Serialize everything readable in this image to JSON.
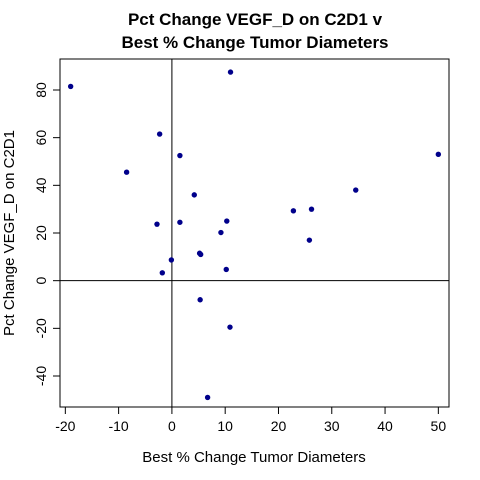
{
  "chart_data": {
    "type": "scatter",
    "title_lines": [
      "Pct Change VEGF_D on C2D1 v",
      "Best % Change Tumor Diameters"
    ],
    "xlabel": "Best % Change Tumor Diameters",
    "ylabel": "Pct Change VEGF_D on C2D1",
    "xlim": [
      -21,
      52
    ],
    "ylim": [
      -53,
      93
    ],
    "xticks": [
      -20,
      -10,
      0,
      10,
      20,
      30,
      40,
      50
    ],
    "yticks": [
      -40,
      -20,
      0,
      20,
      40,
      60,
      80
    ],
    "reference_lines": {
      "x": 0,
      "y": 0
    },
    "point_color": "#00008B",
    "points": [
      {
        "x": -19.0,
        "y": 81.5
      },
      {
        "x": -2.3,
        "y": 61.5
      },
      {
        "x": -8.5,
        "y": 45.5
      },
      {
        "x": 1.5,
        "y": 52.5
      },
      {
        "x": 11.0,
        "y": 87.5
      },
      {
        "x": 4.2,
        "y": 36.0
      },
      {
        "x": -2.8,
        "y": 23.7
      },
      {
        "x": 1.5,
        "y": 24.5
      },
      {
        "x": 10.3,
        "y": 25.0
      },
      {
        "x": 9.2,
        "y": 20.2
      },
      {
        "x": 5.2,
        "y": 11.5
      },
      {
        "x": 5.4,
        "y": 11.0
      },
      {
        "x": -0.1,
        "y": 8.7
      },
      {
        "x": -1.8,
        "y": 3.3
      },
      {
        "x": 10.2,
        "y": 4.7
      },
      {
        "x": 5.3,
        "y": -8.0
      },
      {
        "x": 10.9,
        "y": -19.5
      },
      {
        "x": 6.7,
        "y": -49.0
      },
      {
        "x": 22.8,
        "y": 29.3
      },
      {
        "x": 26.2,
        "y": 30.0
      },
      {
        "x": 25.8,
        "y": 17.0
      },
      {
        "x": 34.5,
        "y": 38.0
      },
      {
        "x": 50.0,
        "y": 53.0
      }
    ]
  }
}
